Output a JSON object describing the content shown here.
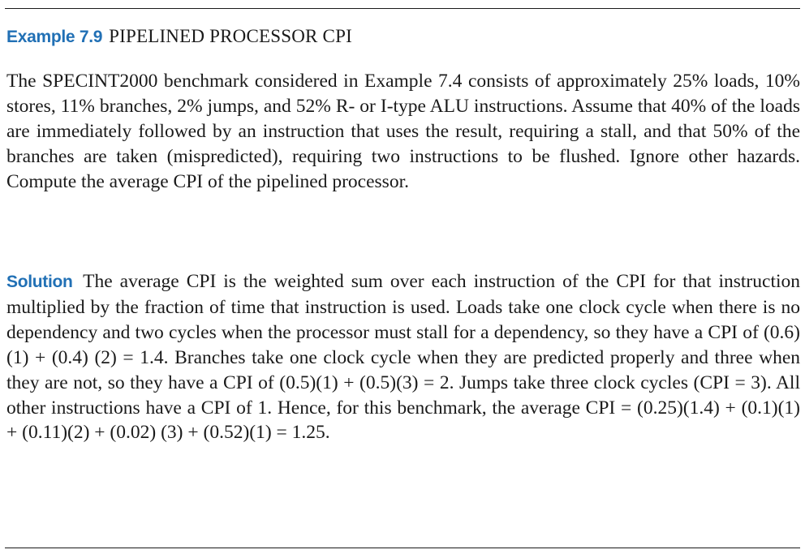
{
  "example": {
    "label": "Example 7.9",
    "title": "PIPELINED PROCESSOR CPI"
  },
  "problem": {
    "text": "The SPECINT2000 benchmark considered in Example 7.4 consists of approxi­mately 25% loads, 10% stores, 11% branches, 2% jumps, and 52% R- or I-type ALU instructions. Assume that 40% of the loads are immediately followed by an instruction that uses the result, requiring a stall, and that 50% of the branches are taken (mispredicted), requiring two instructions to be flushed. Ignore other hazards. Compute the average CPI of the pipelined processor."
  },
  "solution": {
    "label": "Solution",
    "text": "The average CPI is the weighted sum over each instruction of the CPI for that instruction multiplied by the fraction of time that instruction is used. Loads take one clock cycle when there is no dependency and two cycles when the processor must stall for a dependency, so they have a CPI of (0.6)(1) + (0.4) (2) = 1.4. Branches take one clock cycle when they are predicted properly and three when they are not, so they have a CPI of (0.5)(1) + (0.5)(3) = 2. Jumps take three clock cycles (CPI = 3). All other instructions have a CPI of 1. Hence, for this benchmark, the average CPI = (0.25)(1.4) + (0.1)(1) + (0.11)(2) + (0.02) (3) + (0.52)(1) = 1.25."
  },
  "colors": {
    "accent": "#2170b5",
    "text": "#1a1a1a",
    "rule": "#1a1a1a"
  }
}
